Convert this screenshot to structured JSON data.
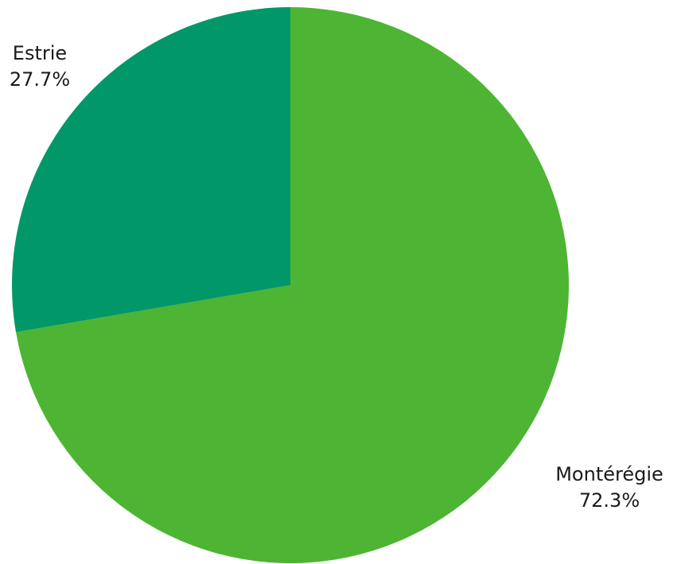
{
  "chart_data": {
    "type": "pie",
    "title": "",
    "start_angle_deg": 0,
    "direction": "clockwise",
    "slices": [
      {
        "name": "Montérégie",
        "value": 72.3,
        "percent_label": "72.3%",
        "color": "#4db533"
      },
      {
        "name": "Estrie",
        "value": 27.7,
        "percent_label": "27.7%",
        "color": "#029768"
      }
    ],
    "legend": "none"
  }
}
